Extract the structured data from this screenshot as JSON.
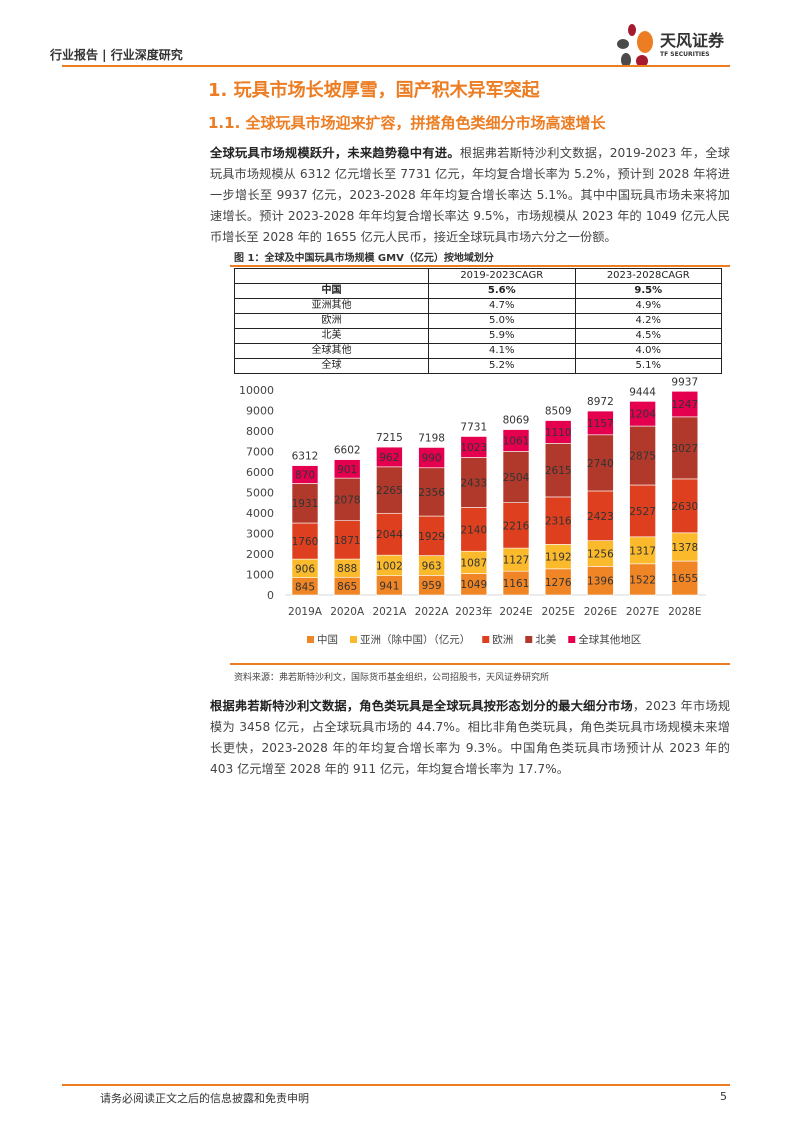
{
  "header": {
    "section": "行业报告 | 行业深度研究",
    "logo_cn": "天风证券",
    "logo_en": "TF SECURITIES"
  },
  "h1": "1. 玩具市场长坡厚雪，国产积木异军突起",
  "h2": "1.1. 全球玩具市场迎来扩容，拼搭角色类细分市场高速增长",
  "para1": {
    "lead": "全球玩具市场规模跃升，未来趋势稳中有进。",
    "body": "根据弗若斯特沙利文数据，2019-2023 年，全球玩具市场规模从 6312 亿元增长至 7731 亿元，年均复合增长率为 5.2%，预计到 2028 年将进一步增长至 9937 亿元，2023-2028 年年均复合增长率达 5.1%。其中中国玩具市场未来将加速增长。预计 2023-2028 年年均复合增长率达 9.5%，市场规模从 2023 年的 1049 亿元人民币增长至 2028 年的 1655 亿元人民币，接近全球玩具市场六分之一份额。"
  },
  "figure": {
    "title": "图 1：全球及中国玩具市场规模 GMV（亿元）按地域划分",
    "table": {
      "headers": [
        "",
        "2019-2023CAGR",
        "2023-2028CAGR"
      ],
      "rows": [
        [
          "中国",
          "5.6%",
          "9.5%"
        ],
        [
          "亚洲其他",
          "4.7%",
          "4.9%"
        ],
        [
          "欧洲",
          "5.0%",
          "4.2%"
        ],
        [
          "北美",
          "5.9%",
          "4.5%"
        ],
        [
          "全球其他",
          "4.1%",
          "4.0%"
        ],
        [
          "全球",
          "5.2%",
          "5.1%"
        ]
      ]
    },
    "source": "资料来源：弗若斯特沙利文，国际货币基金组织，公司招股书，天风证券研究所"
  },
  "chart_data": {
    "type": "bar",
    "stacked": true,
    "categories": [
      "2019A",
      "2020A",
      "2021A",
      "2022A",
      "2023年",
      "2024E",
      "2025E",
      "2026E",
      "2027E",
      "2028E"
    ],
    "ylim": [
      0,
      10000
    ],
    "yticks": [
      0,
      1000,
      2000,
      3000,
      4000,
      5000,
      6000,
      7000,
      8000,
      9000,
      10000
    ],
    "legend_position": "bottom",
    "series": [
      {
        "name": "中国",
        "color": "#F08526",
        "values": [
          845,
          865,
          941,
          959,
          1049,
          1161,
          1276,
          1396,
          1522,
          1655
        ]
      },
      {
        "name": "亚洲（除中国）（亿元）",
        "color": "#FBBA2C",
        "values": [
          906,
          888,
          1002,
          963,
          1087,
          1127,
          1192,
          1256,
          1317,
          1378
        ]
      },
      {
        "name": "欧洲",
        "color": "#DE3F1E",
        "values": [
          1760,
          1871,
          2044,
          1929,
          2140,
          2216,
          2316,
          2423,
          2527,
          2630
        ]
      },
      {
        "name": "北美",
        "color": "#B0392B",
        "values": [
          1931,
          2078,
          2265,
          2356,
          2433,
          2504,
          2615,
          2740,
          2875,
          3027
        ]
      },
      {
        "name": "全球其他地区",
        "color": "#E4004F",
        "values": [
          870,
          901,
          962,
          990,
          1023,
          1061,
          1110,
          1157,
          1204,
          1247
        ]
      }
    ],
    "totals": [
      6312,
      6602,
      7215,
      7198,
      7731,
      8069,
      8509,
      8972,
      9444,
      9937
    ]
  },
  "para2": {
    "lead": "根据弗若斯特沙利文数据，角色类玩具是全球玩具按形态划分的最大细分市场",
    "body": "，2023 年市场规模为 3458 亿元，占全球玩具市场的 44.7%。相比非角色类玩具，角色类玩具市场规模未来增长更快，2023-2028 年的年均复合增长率为 9.3%。中国角色类玩具市场预计从 2023 年的 403 亿元增至 2028 年的 911 亿元，年均复合增长率为 17.7%。"
  },
  "footer": {
    "disclaimer": "请务必阅读正文之后的信息披露和免责申明",
    "page": "5"
  },
  "colors": {
    "accent": "#ED7D22"
  }
}
